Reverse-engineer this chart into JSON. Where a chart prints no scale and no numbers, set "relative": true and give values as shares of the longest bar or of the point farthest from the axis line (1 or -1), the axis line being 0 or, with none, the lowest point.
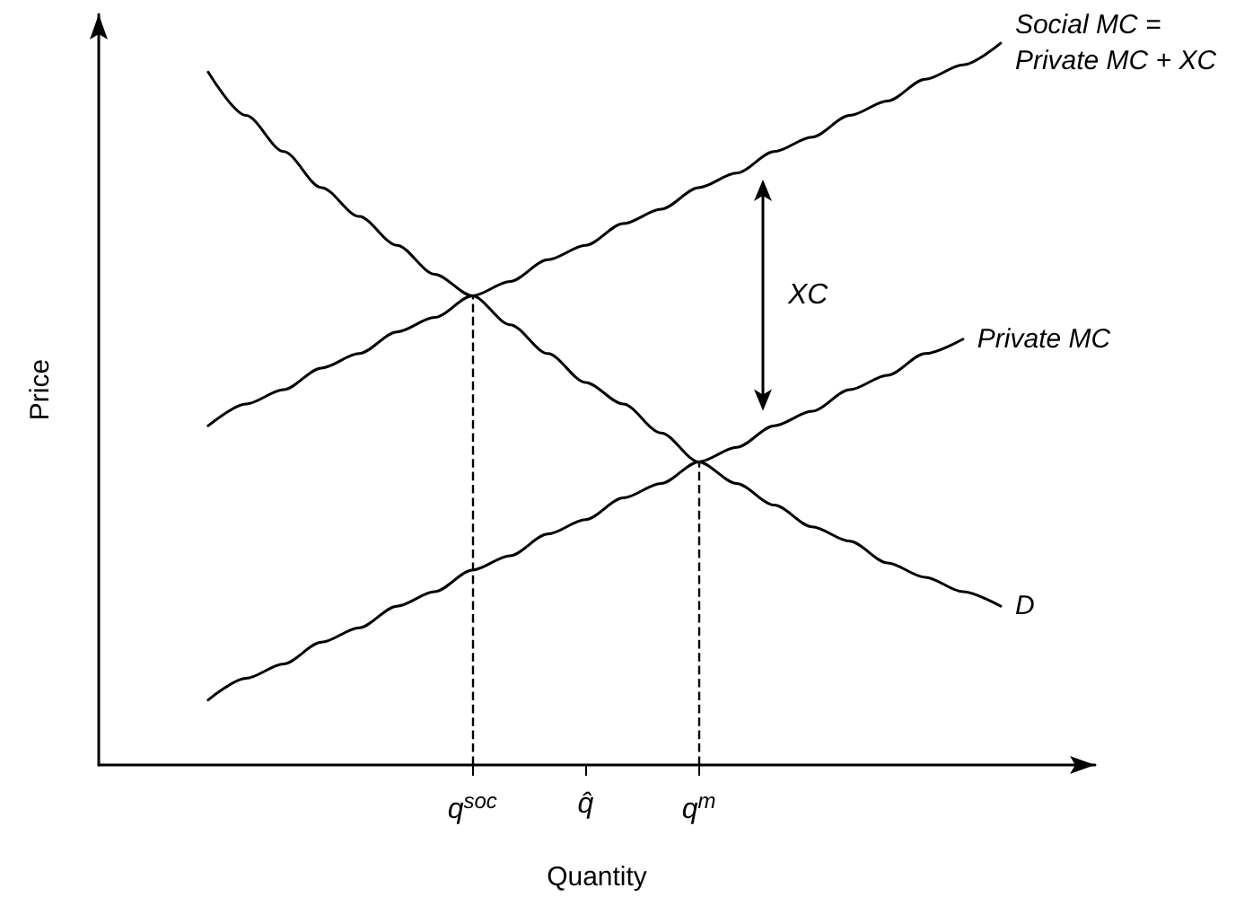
{
  "chart_data": {
    "type": "line",
    "xlabel": "Quantity",
    "ylabel": "Price",
    "relative": true,
    "legend": false,
    "grid": false,
    "tick_labels": "x",
    "marker": "none",
    "line_style": "solid",
    "categories": [
      null,
      null,
      null,
      null,
      null,
      null,
      null,
      "q$^{soc}$",
      null,
      null,
      "q̂",
      null,
      null,
      "q$^{m}$",
      null,
      null,
      null,
      null,
      null,
      null,
      null,
      null
    ],
    "series": [
      {
        "name": "Social MC = Private MC + XC",
        "color": "#000000",
        "values": [
          0.47,
          0.5,
          0.52,
          0.55,
          0.57,
          0.6,
          0.62,
          0.65,
          0.67,
          0.7,
          0.72,
          0.75,
          0.77,
          0.8,
          0.82,
          0.85,
          0.87,
          0.9,
          0.92,
          0.95,
          0.97,
          1
        ]
      },
      {
        "name": "Private MC",
        "color": "#000000",
        "values": [
          0.09,
          0.12,
          0.14,
          0.17,
          0.19,
          0.22,
          0.24,
          0.27,
          0.29,
          0.32,
          0.34,
          0.37,
          0.39,
          0.42,
          0.44,
          0.47,
          0.49,
          0.52,
          0.54,
          0.57,
          0.59,
          null
        ]
      },
      {
        "name": "D",
        "color": "#000000",
        "values": [
          0.96,
          0.9,
          0.85,
          0.8,
          0.76,
          0.72,
          0.68,
          0.65,
          0.61,
          0.57,
          0.53,
          0.5,
          0.46,
          0.42,
          0.39,
          0.36,
          0.33,
          0.31,
          0.28,
          0.26,
          0.24,
          0.22
        ]
      }
    ],
    "ref_lines": [
      {
        "axis": "x",
        "value": "q$^{soc}$",
        "line_style": "dashed"
      },
      {
        "axis": "x",
        "value": "q$^{m}$",
        "line_style": "dashed"
      }
    ],
    "annotations": [
      "XC"
    ]
  }
}
